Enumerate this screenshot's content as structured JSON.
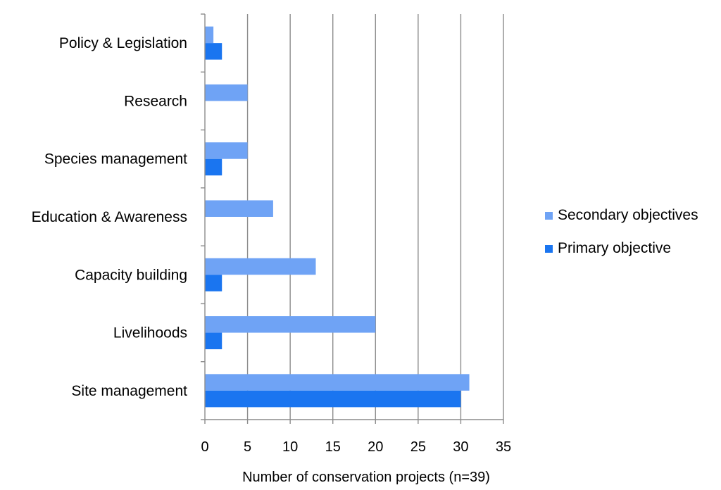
{
  "chart_data": {
    "type": "bar",
    "orientation": "horizontal",
    "categories": [
      "Policy & Legislation",
      "Research",
      "Species management",
      "Education & Awareness",
      "Capacity building",
      "Livelihoods",
      "Site management"
    ],
    "series": [
      {
        "name": "Secondary objectives",
        "values": [
          1,
          5,
          5,
          8,
          13,
          20,
          31
        ],
        "color": "#6fa3f5"
      },
      {
        "name": "Primary objective",
        "values": [
          2,
          0,
          2,
          0,
          2,
          2,
          30
        ],
        "color": "#1a75f0"
      }
    ],
    "xlabel": "Number of conservation projects (n=39)",
    "xlim": [
      0,
      35
    ],
    "xticks": [
      0,
      5,
      10,
      15,
      20,
      25,
      30,
      35
    ],
    "grid": "vertical",
    "legend_position": "right"
  }
}
